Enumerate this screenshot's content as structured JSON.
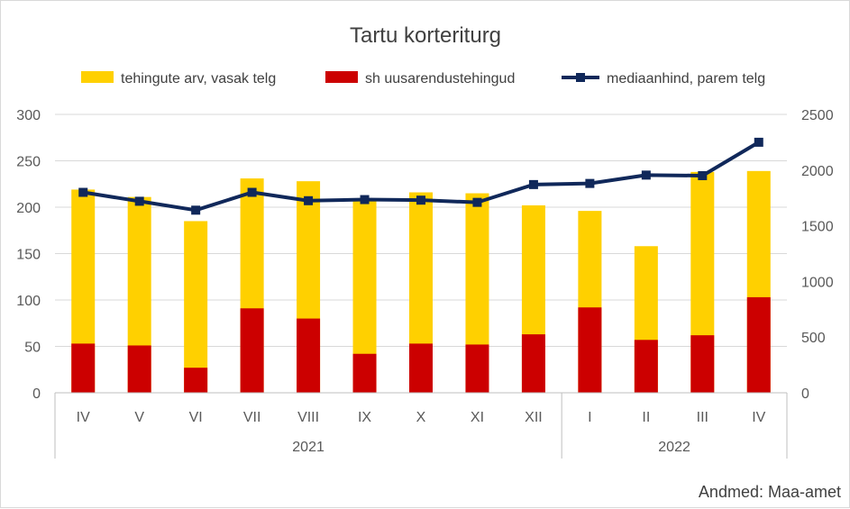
{
  "chart_data": {
    "type": "bar",
    "title": "Tartu korteriturg",
    "source": "Andmed: Maa-amet",
    "categories": [
      "IV",
      "V",
      "VI",
      "VII",
      "VIII",
      "IX",
      "X",
      "XI",
      "XII",
      "I",
      "II",
      "III",
      "IV"
    ],
    "groups": [
      {
        "label": "2021",
        "count": 9
      },
      {
        "label": "2022",
        "count": 4
      }
    ],
    "series": [
      {
        "name": "tehingute arv, vasak telg",
        "type": "bar",
        "axis": "left",
        "color": "#FFD000",
        "values": [
          219,
          211,
          185,
          231,
          228,
          208,
          216,
          215,
          202,
          196,
          158,
          238,
          239
        ]
      },
      {
        "name": "sh uusarendustehingud",
        "type": "bar",
        "axis": "left",
        "color": "#CC0000",
        "values": [
          53,
          51,
          27,
          91,
          80,
          42,
          53,
          52,
          63,
          92,
          57,
          62,
          103
        ]
      },
      {
        "name": "mediaanhind, parem telg",
        "type": "line",
        "axis": "right",
        "color": "#10285A",
        "values": [
          1800,
          1720,
          1640,
          1800,
          1725,
          1735,
          1730,
          1710,
          1870,
          1880,
          1955,
          1950,
          2250
        ]
      }
    ],
    "y_left": {
      "min": 0,
      "max": 300,
      "ticks": [
        0,
        50,
        100,
        150,
        200,
        250,
        300
      ]
    },
    "y_right": {
      "min": 0,
      "max": 2500,
      "ticks": [
        0,
        500,
        1000,
        1500,
        2000,
        2500
      ]
    },
    "grid": true,
    "legend": "top"
  }
}
